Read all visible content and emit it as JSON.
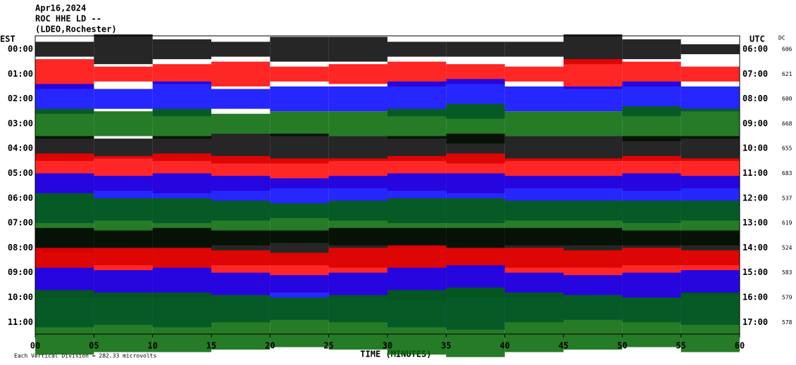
{
  "chart_data": {
    "type": "helicorder",
    "title": "Apr16,2024",
    "subtitle": "ROC HHE LD --",
    "source": "(LDEO,Rochester)",
    "left_axis_label": "EST",
    "right_axis_label": "UTC",
    "dc_label": "DC",
    "xlabel": "TIME (MINUTES)",
    "note": "Each Vertical Division = 282.33 microvolts",
    "xlim": [
      0,
      60
    ],
    "xticks": [
      {
        "value": 0,
        "label": "00"
      },
      {
        "value": 5,
        "label": "05"
      },
      10,
      15,
      20,
      25,
      30,
      35,
      40,
      45,
      50,
      55,
      60
    ],
    "series": [
      {
        "est": "00:00",
        "utc": "06:00",
        "dc": 606,
        "color": "#000000",
        "values": [
          0.3,
          0.6,
          0.4,
          0.3,
          0.5,
          0.5,
          0.3,
          0.3,
          0.3,
          0.6,
          0.4,
          0.2
        ]
      },
      {
        "est": "01:00",
        "utc": "07:00",
        "dc": 621,
        "color": "#ff0000",
        "values": [
          0.6,
          0.3,
          0.4,
          0.5,
          0.3,
          0.4,
          0.5,
          0.4,
          0.3,
          0.6,
          0.5,
          0.3
        ]
      },
      {
        "est": "02:00",
        "utc": "08:00",
        "dc": 600,
        "color": "#0000ff",
        "values": [
          0.6,
          0.4,
          0.7,
          0.4,
          0.5,
          0.5,
          0.7,
          0.8,
          0.5,
          0.5,
          0.7,
          0.5
        ]
      },
      {
        "est": "03:00",
        "utc": "09:00",
        "dc": 668,
        "color": "#006400",
        "values": [
          0.6,
          0.5,
          0.6,
          0.4,
          0.5,
          0.5,
          0.6,
          0.8,
          0.5,
          0.5,
          0.7,
          0.6
        ]
      },
      {
        "est": "04:00",
        "utc": "10:00",
        "dc": 655,
        "color": "#000000",
        "values": [
          0.5,
          0.4,
          0.5,
          0.6,
          0.6,
          0.5,
          0.5,
          0.6,
          0.5,
          0.5,
          0.5,
          0.5
        ]
      },
      {
        "est": "05:00",
        "utc": "11:00",
        "dc": 683,
        "color": "#ff0000",
        "values": [
          0.8,
          0.7,
          0.8,
          0.7,
          0.6,
          0.6,
          0.7,
          0.8,
          0.6,
          0.6,
          0.7,
          0.6
        ]
      },
      {
        "est": "06:00",
        "utc": "12:00",
        "dc": 537,
        "color": "#0000ff",
        "values": [
          1.0,
          0.9,
          1.0,
          0.9,
          0.8,
          0.9,
          1.0,
          1.0,
          0.9,
          0.9,
          1.0,
          0.9
        ]
      },
      {
        "est": "07:00",
        "utc": "13:00",
        "dc": 619,
        "color": "#006400",
        "values": [
          1.2,
          1.0,
          1.0,
          0.9,
          0.8,
          0.9,
          1.0,
          1.0,
          0.9,
          0.9,
          0.9,
          0.9
        ]
      },
      {
        "est": "08:00",
        "utc": "14:00",
        "dc": 524,
        "color": "#000000",
        "values": [
          0.8,
          0.7,
          0.8,
          0.7,
          0.7,
          0.8,
          0.8,
          0.8,
          0.8,
          0.8,
          0.7,
          0.7
        ]
      },
      {
        "est": "09:00",
        "utc": "15:00",
        "dc": 583,
        "color": "#ff0000",
        "values": [
          1.0,
          1.0,
          1.0,
          0.9,
          0.8,
          1.0,
          1.1,
          1.0,
          1.0,
          0.9,
          1.0,
          0.9
        ]
      },
      {
        "est": "10:00",
        "utc": "16:00",
        "dc": 579,
        "color": "#0000ff",
        "values": [
          1.2,
          1.1,
          1.2,
          1.0,
          0.9,
          1.0,
          1.2,
          1.3,
          1.0,
          0.9,
          1.0,
          1.1
        ]
      },
      {
        "est": "11:00",
        "utc": "17:00",
        "dc": 578,
        "color": "#006400",
        "values": [
          1.3,
          1.2,
          1.2,
          1.1,
          1.0,
          1.1,
          1.3,
          1.4,
          1.2,
          1.1,
          1.0,
          1.2
        ]
      }
    ]
  }
}
